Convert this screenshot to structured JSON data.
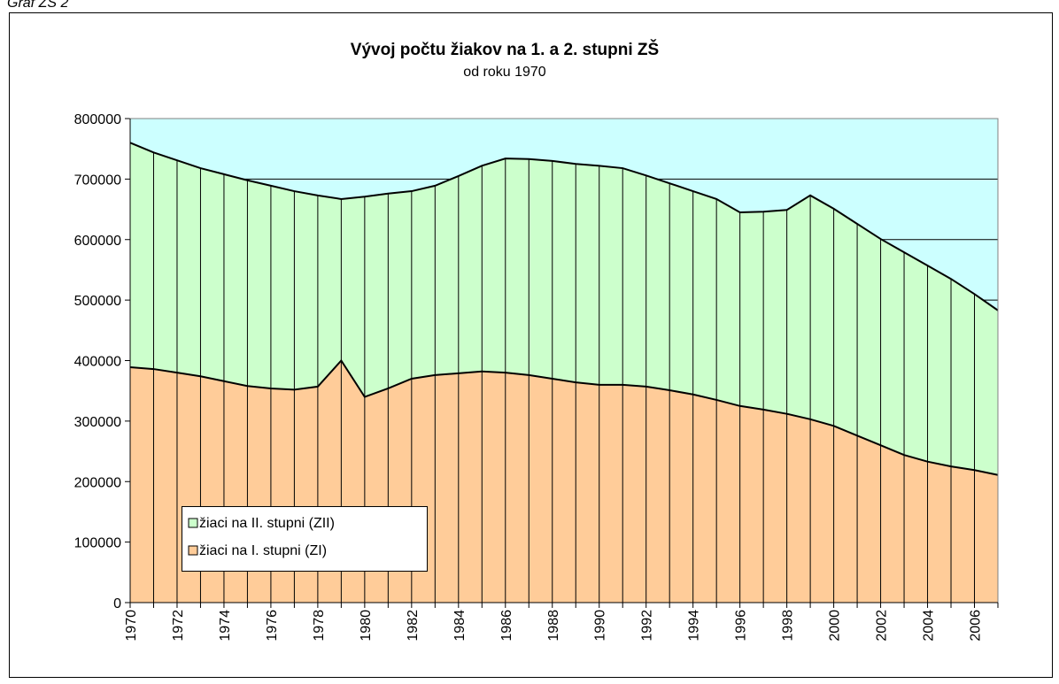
{
  "caption": "Graf ZŠ 2",
  "chart_data": {
    "type": "stacked-area",
    "title": "Vývoj počtu žiakov na 1. a 2. stupni ZŠ",
    "subtitle": "od roku 1970",
    "categories": [
      "1970",
      null,
      "1972",
      null,
      "1974",
      null,
      "1976",
      null,
      "1978",
      null,
      "1980",
      null,
      "1982",
      null,
      "1984",
      null,
      "1986",
      null,
      "1988",
      null,
      "1990",
      null,
      "1992",
      null,
      "1994",
      null,
      "1996",
      null,
      "1998",
      null,
      "2000",
      null,
      "2002",
      null,
      "2004",
      null,
      "2006",
      null
    ],
    "series": [
      {
        "name": "žiaci na I. stupni (ZI)",
        "color": "#ffcc99",
        "values": [
          389000,
          386000,
          380000,
          374000,
          366000,
          358000,
          354000,
          352000,
          357000,
          400000,
          340000,
          354000,
          370000,
          376000,
          379000,
          382000,
          380000,
          376000,
          370000,
          364000,
          360000,
          360000,
          357000,
          351000,
          344000,
          335000,
          325000,
          319000,
          312000,
          303000,
          292000,
          276000,
          260000,
          244000,
          233000,
          225000,
          219000,
          211000
        ]
      },
      {
        "name": "žiaci na II. stupni (ZII)",
        "color": "#ccffcc",
        "values": [
          371000,
          358000,
          351000,
          344000,
          342000,
          340000,
          335000,
          328000,
          316000,
          267000,
          331000,
          322000,
          310000,
          313000,
          326000,
          340000,
          354000,
          357000,
          360000,
          361000,
          362000,
          358000,
          349000,
          342000,
          336000,
          332000,
          320000,
          327000,
          337000,
          370000,
          359000,
          350000,
          341000,
          335000,
          324000,
          310000,
          291000,
          272000
        ]
      }
    ],
    "ylim": [
      0,
      800000
    ],
    "yticks": [
      0,
      100000,
      200000,
      300000,
      400000,
      500000,
      600000,
      700000,
      800000
    ],
    "grid": true,
    "plot_background": "#ccffff",
    "legend": "lower left"
  }
}
